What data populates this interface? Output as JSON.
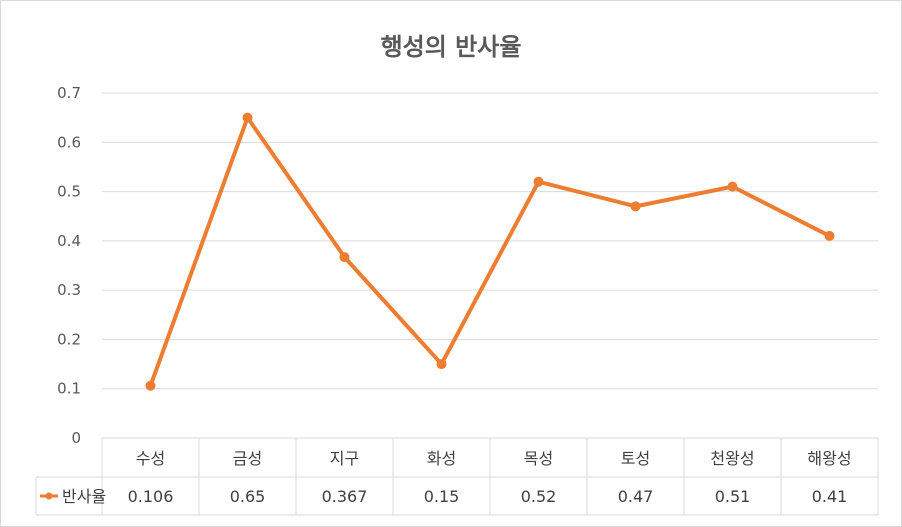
{
  "chart_data": {
    "type": "line",
    "title": "행성의 반사율",
    "categories": [
      "수성",
      "금성",
      "지구",
      "화성",
      "목성",
      "토성",
      "천왕성",
      "해왕성"
    ],
    "series": [
      {
        "name": "반사율",
        "values": [
          0.106,
          0.65,
          0.367,
          0.15,
          0.52,
          0.47,
          0.51,
          0.41
        ],
        "color": "#ED7D31"
      }
    ],
    "value_labels": [
      "0.106",
      "0.65",
      "0.367",
      "0.15",
      "0.52",
      "0.47",
      "0.51",
      "0.41"
    ],
    "ylim": [
      0,
      0.7
    ],
    "yticks": [
      "0",
      "0.1",
      "0.2",
      "0.3",
      "0.4",
      "0.5",
      "0.6",
      "0.7"
    ],
    "grid": true,
    "data_table": true,
    "xlabel": "",
    "ylabel": ""
  }
}
